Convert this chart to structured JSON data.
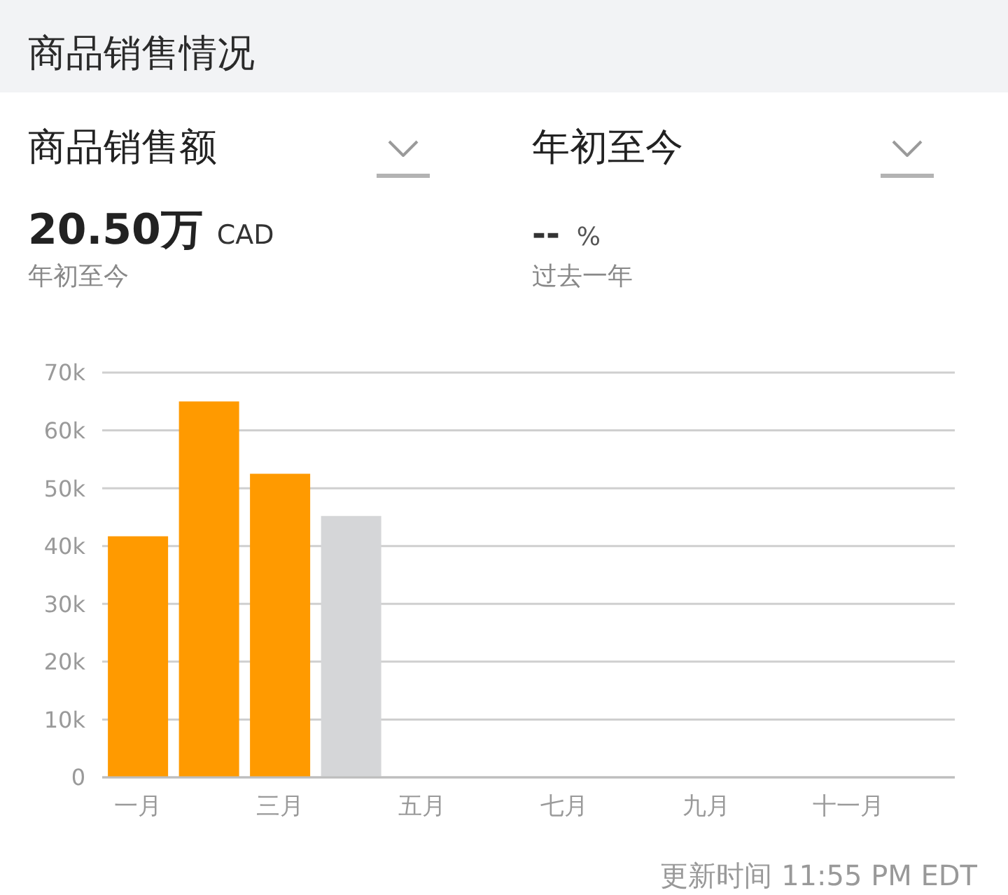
{
  "chart_data": {
    "type": "bar",
    "title": "商品销售情况",
    "annotations": [
      "商品销售额",
      "年初至今",
      "20.50万",
      "CAD",
      "年初至今",
      "--",
      "%",
      "过去一年",
      "更新时间 11:55 PM EDT"
    ],
    "categories": [
      "一月",
      null,
      "三月",
      null,
      "五月",
      null,
      "七月",
      null,
      "九月",
      null,
      "十一月",
      null
    ],
    "values": [
      41700,
      65000,
      52500,
      45200,
      null,
      null,
      null,
      null,
      null,
      null,
      null,
      null
    ],
    "colors": [
      "#ff9a00",
      "#ff9a00",
      "#ff9a00",
      "#d5d6d8",
      null,
      null,
      null,
      null,
      null,
      null,
      null,
      null
    ],
    "ylim": [
      0,
      70000
    ],
    "yticks": [
      0,
      {
        "value": 10000,
        "label": "10k"
      },
      {
        "value": 20000,
        "label": "20k"
      },
      {
        "value": 30000,
        "label": "30k"
      },
      {
        "value": 40000,
        "label": "40k"
      },
      {
        "value": 50000,
        "label": "50k"
      },
      {
        "value": 60000,
        "label": "60k"
      },
      {
        "value": 70000,
        "label": "70k"
      }
    ],
    "grid": "y"
  }
}
